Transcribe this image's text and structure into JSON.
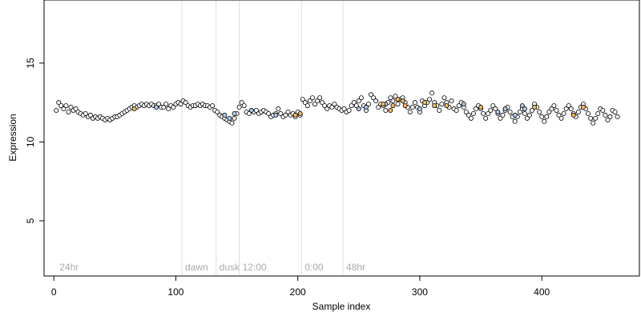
{
  "chart_data": {
    "type": "scatter",
    "title": "",
    "xlabel": "Sample index",
    "ylabel": "Expression",
    "xlim": [
      -8,
      480
    ],
    "ylim": [
      1.5,
      19
    ],
    "x_ticks": [
      0,
      100,
      200,
      300,
      400
    ],
    "y_ticks": [
      5,
      10,
      15
    ],
    "grid": false,
    "legend": "none",
    "vertical_markers": [
      {
        "x": 2,
        "label": "24hr"
      },
      {
        "x": 105,
        "label": "dawn"
      },
      {
        "x": 133,
        "label": "dusk"
      },
      {
        "x": 152,
        "label": "12:00"
      },
      {
        "x": 203,
        "label": "0:00"
      },
      {
        "x": 237,
        "label": "48hr"
      }
    ],
    "colors": {
      "marker_line": "#dddddd",
      "marker_text": "#aaaaaa",
      "point_stroke": "#000000",
      "point_fill_default": "#ffffff",
      "point_fill_blue": "#a9c8ea",
      "point_fill_orange": "#f5b860"
    },
    "series": [
      {
        "values": [
          [
            2,
            12.0
          ],
          [
            4,
            12.5
          ],
          [
            6,
            12.3
          ],
          [
            8,
            12.1
          ],
          [
            10,
            12.3
          ],
          [
            12,
            11.9
          ],
          [
            14,
            12.2
          ],
          [
            16,
            12.0
          ],
          [
            18,
            12.1
          ],
          [
            20,
            11.9
          ],
          [
            22,
            11.8
          ],
          [
            24,
            11.7
          ],
          [
            26,
            11.8
          ],
          [
            28,
            11.6
          ],
          [
            30,
            11.7
          ],
          [
            32,
            11.5
          ],
          [
            34,
            11.6
          ],
          [
            36,
            11.5
          ],
          [
            38,
            11.6
          ],
          [
            40,
            11.5
          ],
          [
            42,
            11.4
          ],
          [
            44,
            11.5
          ],
          [
            46,
            11.4
          ],
          [
            48,
            11.5
          ],
          [
            50,
            11.6
          ],
          [
            52,
            11.6
          ],
          [
            54,
            11.7
          ],
          [
            56,
            11.8
          ],
          [
            58,
            11.9
          ],
          [
            60,
            12.0
          ],
          [
            62,
            12.1
          ],
          [
            64,
            12.2
          ],
          [
            66,
            12.3
          ],
          [
            68,
            12.2
          ],
          [
            70,
            12.3
          ],
          [
            72,
            12.4
          ],
          [
            74,
            12.3
          ],
          [
            76,
            12.4
          ],
          [
            78,
            12.3
          ],
          [
            80,
            12.4
          ],
          [
            82,
            12.3
          ],
          [
            84,
            12.3
          ],
          [
            86,
            12.4
          ],
          [
            88,
            12.2
          ],
          [
            90,
            12.2
          ],
          [
            92,
            12.4
          ],
          [
            94,
            12.1
          ],
          [
            96,
            12.3
          ],
          [
            98,
            12.2
          ],
          [
            100,
            12.4
          ],
          [
            102,
            12.5
          ],
          [
            104,
            12.4
          ],
          [
            106,
            12.6
          ],
          [
            108,
            12.5
          ],
          [
            110,
            12.3
          ],
          [
            112,
            12.2
          ],
          [
            114,
            12.3
          ],
          [
            116,
            12.3
          ],
          [
            118,
            12.4
          ],
          [
            120,
            12.3
          ],
          [
            122,
            12.4
          ],
          [
            124,
            12.3
          ],
          [
            126,
            12.3
          ],
          [
            128,
            12.2
          ],
          [
            130,
            12.3
          ],
          [
            132,
            12.0
          ],
          [
            134,
            11.9
          ],
          [
            136,
            11.7
          ],
          [
            138,
            11.6
          ],
          [
            140,
            11.5
          ],
          [
            142,
            11.4
          ],
          [
            144,
            11.3
          ],
          [
            146,
            11.2
          ],
          [
            148,
            11.5
          ],
          [
            150,
            11.8
          ],
          [
            152,
            12.2
          ],
          [
            154,
            12.5
          ],
          [
            156,
            12.3
          ],
          [
            158,
            11.9
          ],
          [
            160,
            11.8
          ],
          [
            162,
            12.0
          ],
          [
            164,
            11.9
          ],
          [
            166,
            12.0
          ],
          [
            168,
            11.8
          ],
          [
            170,
            11.9
          ],
          [
            172,
            12.0
          ],
          [
            174,
            11.9
          ],
          [
            176,
            11.8
          ],
          [
            178,
            11.6
          ],
          [
            180,
            11.7
          ],
          [
            182,
            11.8
          ],
          [
            184,
            12.1
          ],
          [
            186,
            11.8
          ],
          [
            188,
            11.6
          ],
          [
            190,
            11.7
          ],
          [
            192,
            11.9
          ],
          [
            194,
            11.7
          ],
          [
            196,
            11.8
          ],
          [
            198,
            11.6
          ],
          [
            200,
            11.9
          ],
          [
            202,
            11.7
          ],
          [
            204,
            12.7
          ],
          [
            206,
            12.5
          ],
          [
            208,
            12.3
          ],
          [
            210,
            12.6
          ],
          [
            212,
            12.8
          ],
          [
            214,
            12.4
          ],
          [
            216,
            12.6
          ],
          [
            218,
            12.8
          ],
          [
            220,
            12.5
          ],
          [
            222,
            12.3
          ],
          [
            224,
            12.1
          ],
          [
            226,
            12.3
          ],
          [
            228,
            12.2
          ],
          [
            230,
            12.4
          ],
          [
            232,
            12.2
          ],
          [
            234,
            12.1
          ],
          [
            236,
            12.0
          ],
          [
            238,
            12.1
          ],
          [
            240,
            11.9
          ],
          [
            242,
            12.0
          ],
          [
            244,
            12.3
          ],
          [
            246,
            12.5
          ],
          [
            248,
            12.3
          ],
          [
            250,
            12.6
          ],
          [
            252,
            12.8
          ],
          [
            254,
            12.3
          ],
          [
            256,
            12.0
          ],
          [
            258,
            12.4
          ],
          [
            260,
            13.0
          ],
          [
            262,
            12.8
          ],
          [
            264,
            12.6
          ],
          [
            266,
            12.2
          ],
          [
            268,
            12.4
          ],
          [
            270,
            12.3
          ],
          [
            272,
            12.0
          ],
          [
            274,
            12.5
          ],
          [
            276,
            12.8
          ],
          [
            278,
            12.6
          ],
          [
            280,
            12.9
          ],
          [
            282,
            12.4
          ],
          [
            284,
            12.7
          ],
          [
            286,
            12.8
          ],
          [
            288,
            12.5
          ],
          [
            290,
            12.2
          ],
          [
            292,
            11.9
          ],
          [
            294,
            12.2
          ],
          [
            296,
            12.5
          ],
          [
            298,
            12.2
          ],
          [
            300,
            11.9
          ],
          [
            302,
            12.6
          ],
          [
            304,
            12.3
          ],
          [
            306,
            12.5
          ],
          [
            308,
            12.7
          ],
          [
            310,
            13.1
          ],
          [
            312,
            12.5
          ],
          [
            314,
            12.3
          ],
          [
            316,
            12.0
          ],
          [
            318,
            12.4
          ],
          [
            320,
            12.8
          ],
          [
            322,
            12.5
          ],
          [
            324,
            12.2
          ],
          [
            326,
            12.6
          ],
          [
            328,
            12.1
          ],
          [
            330,
            12.0
          ],
          [
            332,
            12.3
          ],
          [
            334,
            12.5
          ],
          [
            336,
            12.2
          ],
          [
            338,
            11.9
          ],
          [
            340,
            11.7
          ],
          [
            342,
            11.5
          ],
          [
            344,
            11.8
          ],
          [
            346,
            12.1
          ],
          [
            348,
            12.3
          ],
          [
            350,
            12.1
          ],
          [
            352,
            11.8
          ],
          [
            354,
            11.5
          ],
          [
            356,
            11.8
          ],
          [
            358,
            12.0
          ],
          [
            360,
            12.3
          ],
          [
            362,
            12.1
          ],
          [
            364,
            11.8
          ],
          [
            366,
            11.5
          ],
          [
            368,
            11.7
          ],
          [
            370,
            12.0
          ],
          [
            372,
            12.2
          ],
          [
            374,
            11.9
          ],
          [
            376,
            11.6
          ],
          [
            378,
            11.3
          ],
          [
            380,
            11.6
          ],
          [
            382,
            11.9
          ],
          [
            384,
            12.1
          ],
          [
            386,
            11.8
          ],
          [
            388,
            11.5
          ],
          [
            390,
            11.7
          ],
          [
            392,
            12.0
          ],
          [
            394,
            12.4
          ],
          [
            396,
            12.2
          ],
          [
            398,
            11.9
          ],
          [
            400,
            11.6
          ],
          [
            402,
            11.3
          ],
          [
            404,
            11.6
          ],
          [
            406,
            11.9
          ],
          [
            408,
            12.1
          ],
          [
            410,
            12.3
          ],
          [
            412,
            12.0
          ],
          [
            414,
            11.7
          ],
          [
            416,
            11.5
          ],
          [
            418,
            11.8
          ],
          [
            420,
            12.1
          ],
          [
            422,
            12.3
          ],
          [
            424,
            12.1
          ],
          [
            426,
            11.8
          ],
          [
            428,
            11.6
          ],
          [
            430,
            11.9
          ],
          [
            432,
            12.2
          ],
          [
            434,
            12.4
          ],
          [
            436,
            12.1
          ],
          [
            438,
            11.8
          ],
          [
            440,
            11.5
          ],
          [
            442,
            11.2
          ],
          [
            444,
            11.5
          ],
          [
            446,
            11.8
          ],
          [
            448,
            12.1
          ],
          [
            450,
            12.0
          ],
          [
            452,
            11.7
          ],
          [
            454,
            11.4
          ],
          [
            456,
            11.6
          ],
          [
            458,
            12.0
          ],
          [
            460,
            11.9
          ],
          [
            462,
            11.6
          ]
        ]
      },
      {
        "values": [
          [
            84,
            12.2
          ],
          [
            140,
            11.7
          ],
          [
            144,
            11.5
          ],
          [
            148,
            11.8
          ],
          [
            162,
            12.0
          ],
          [
            182,
            11.7
          ],
          [
            250,
            12.1
          ],
          [
            256,
            12.2
          ],
          [
            272,
            12.4
          ],
          [
            300,
            12.1
          ],
          [
            336,
            12.4
          ],
          [
            364,
            11.9
          ],
          [
            370,
            12.1
          ],
          [
            378,
            11.7
          ],
          [
            384,
            12.3
          ],
          [
            386,
            12.1
          ]
        ]
      },
      {
        "values": [
          [
            66,
            12.1
          ],
          [
            198,
            11.7
          ],
          [
            202,
            11.8
          ],
          [
            270,
            12.4
          ],
          [
            276,
            12.0
          ],
          [
            278,
            12.3
          ],
          [
            282,
            12.7
          ],
          [
            286,
            12.6
          ],
          [
            288,
            12.3
          ],
          [
            304,
            12.5
          ],
          [
            312,
            12.3
          ],
          [
            322,
            12.3
          ],
          [
            350,
            12.2
          ],
          [
            394,
            12.2
          ],
          [
            426,
            11.7
          ],
          [
            434,
            12.2
          ]
        ]
      }
    ]
  }
}
